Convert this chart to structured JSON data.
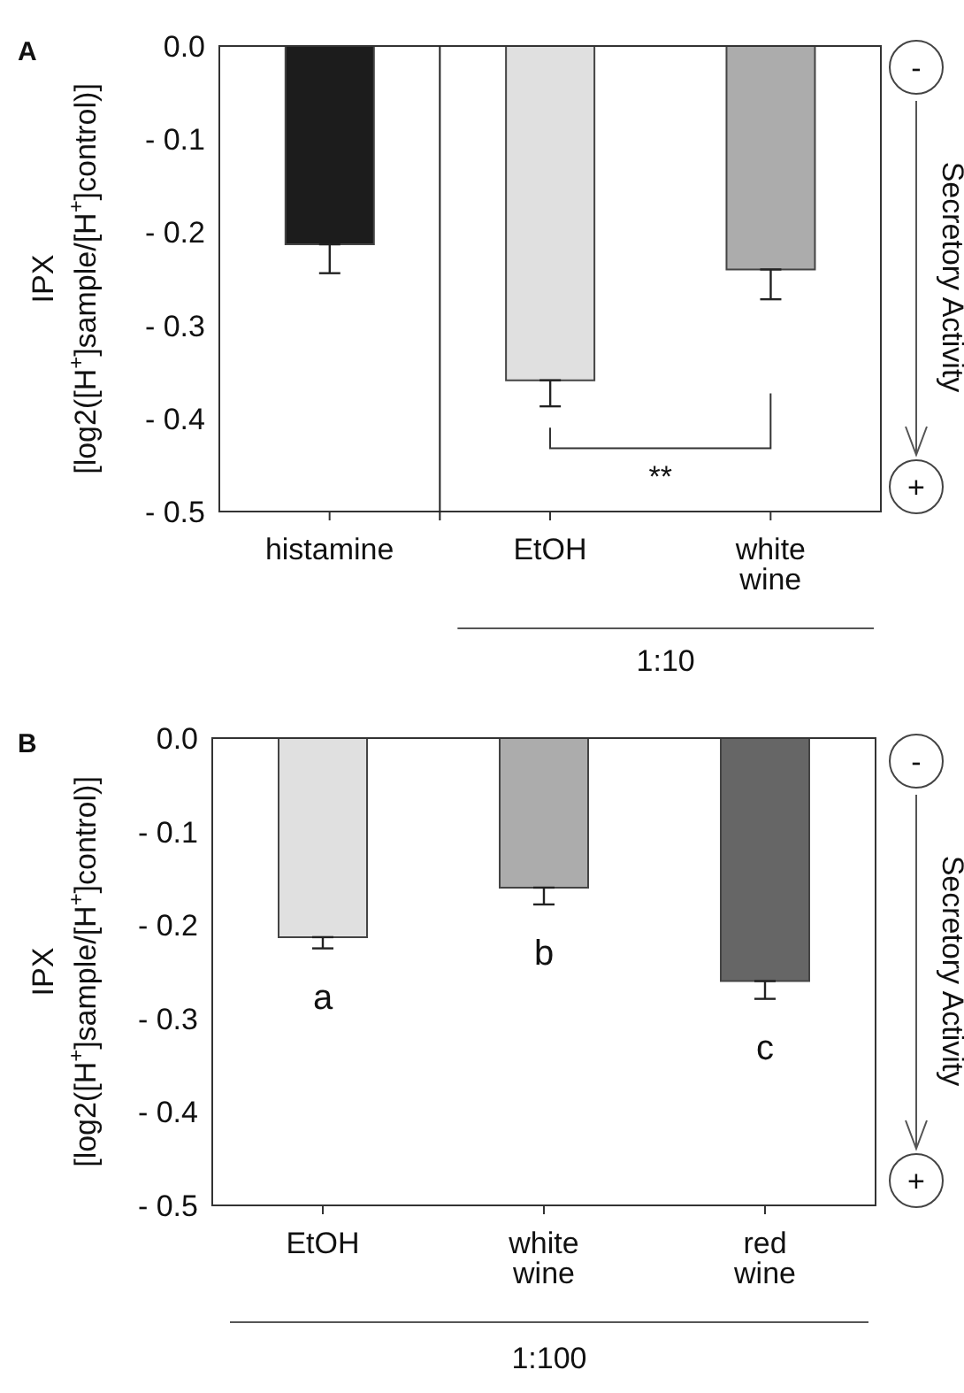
{
  "chart_data": [
    {
      "type": "bar",
      "title": "A",
      "ylabel": "IPX\n[log2([H$^{+}$]sample/[H$^{+}$]control)]",
      "categories": [
        "histamine",
        "EtOH",
        "white wine"
      ],
      "values": [
        -0.213,
        -0.359,
        -0.24
      ],
      "colors": [
        "#1c1c1c",
        "#e0e0e0",
        "#acacac"
      ],
      "errors": [
        [
          -0.244,
          -0.213
        ],
        [
          -0.387,
          -0.359
        ],
        [
          -0.272,
          -0.24
        ]
      ],
      "ylim": [
        -0.5,
        0
      ],
      "yticks": [
        {
          "value": 0,
          "label": "0.0"
        },
        {
          "value": -0.1,
          "label": "- 0.1"
        },
        {
          "value": -0.2,
          "label": "- 0.2"
        },
        {
          "value": -0.3,
          "label": "- 0.3"
        },
        {
          "value": -0.4,
          "label": "- 0.4"
        },
        {
          "value": -0.5,
          "label": "- 0.5"
        }
      ],
      "grid": false,
      "legend": false,
      "annotations": [
        "1:10",
        "-",
        "+",
        "Secretory Activity",
        "**"
      ]
    },
    {
      "type": "bar",
      "title": "B",
      "ylabel": "IPX\n[log2([H$^{+}$]sample/[H$^{+}$]control)]",
      "categories": [
        "EtOH",
        "white wine",
        "red wine"
      ],
      "values": [
        -0.213,
        -0.16,
        -0.26
      ],
      "colors": [
        "#e0e0e0",
        "#acacac",
        "#666666"
      ],
      "errors": [
        [
          -0.225,
          -0.213
        ],
        [
          -0.178,
          -0.16
        ],
        [
          -0.279,
          -0.26
        ]
      ],
      "ylim": [
        -0.5,
        0
      ],
      "yticks": [
        {
          "value": 0,
          "label": "0.0"
        },
        {
          "value": -0.1,
          "label": "- 0.1"
        },
        {
          "value": -0.2,
          "label": "- 0.2"
        },
        {
          "value": -0.3,
          "label": "- 0.3"
        },
        {
          "value": -0.4,
          "label": "- 0.4"
        },
        {
          "value": -0.5,
          "label": "- 0.5"
        }
      ],
      "grid": false,
      "legend": false,
      "annotations": [
        "1:100",
        "-",
        "+",
        "Secretory Activity",
        "a",
        "b",
        "c"
      ]
    }
  ]
}
